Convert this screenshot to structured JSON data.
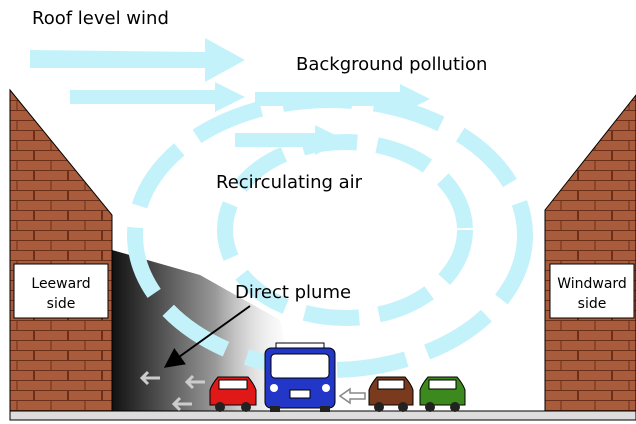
{
  "labels": {
    "roof_wind": "Roof level wind",
    "background": "Background pollution",
    "recirculating": "Recirculating air",
    "plume": "Direct plume"
  },
  "leeward": [
    "Leeward",
    "side"
  ],
  "windward": [
    "Windward",
    "side"
  ]
}
